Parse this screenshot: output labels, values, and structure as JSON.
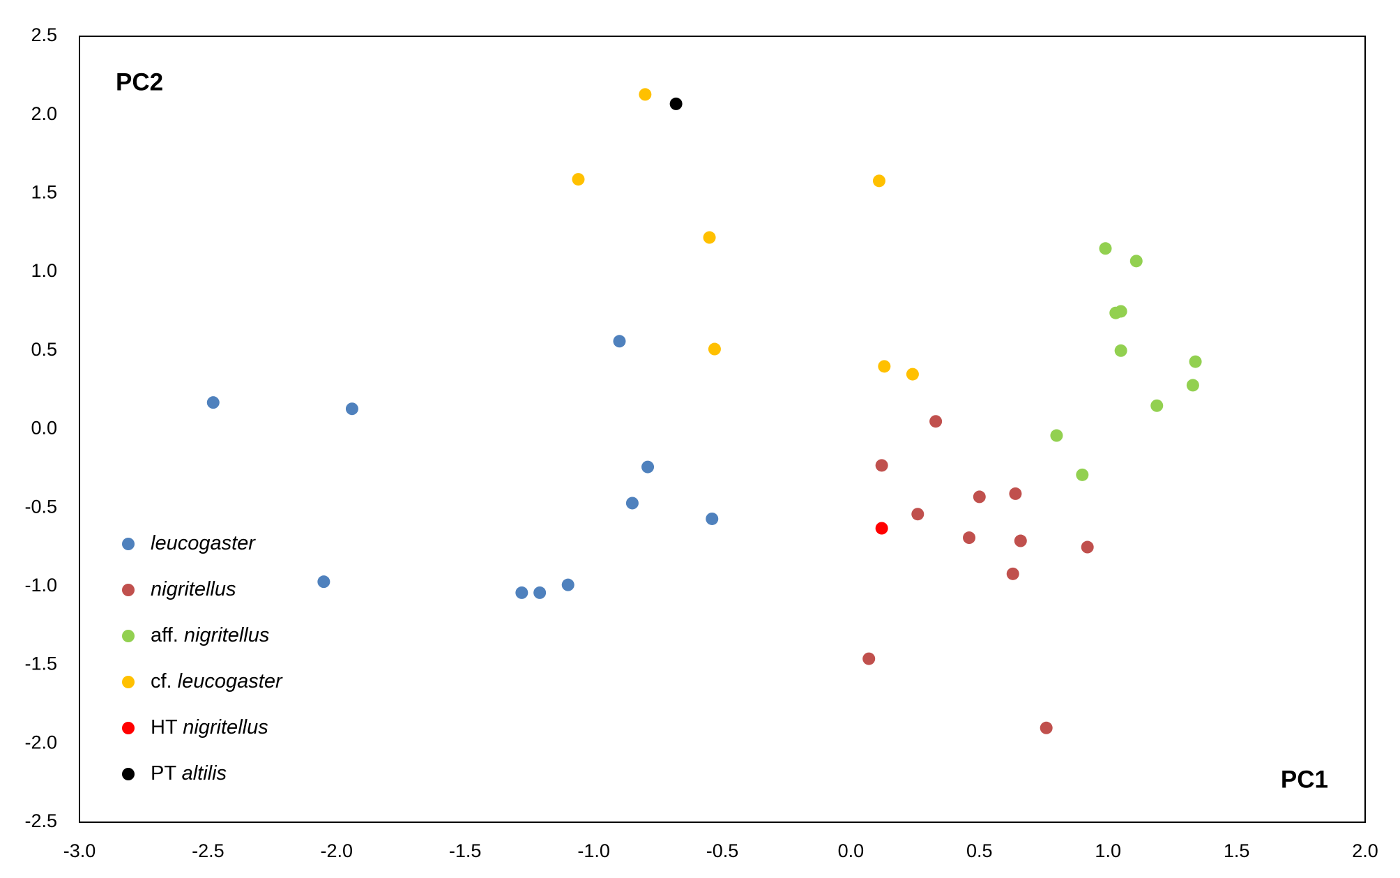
{
  "chart_data": {
    "type": "scatter",
    "x_label": "PC1",
    "y_label": "PC2",
    "xlim": [
      -3.0,
      2.0
    ],
    "ylim": [
      -2.5,
      2.5
    ],
    "xticks": [
      {
        "value": -3,
        "label": "-3.0"
      },
      -2.5,
      {
        "value": -2,
        "label": "-2.0"
      },
      -1.5,
      {
        "value": -1,
        "label": "-1.0"
      },
      -0.5,
      {
        "value": 0,
        "label": "0.0"
      },
      0.5,
      {
        "value": 1,
        "label": "1.0"
      },
      1.5,
      {
        "value": 2,
        "label": "2.0"
      }
    ],
    "yticks": [
      2.5,
      {
        "value": 2,
        "label": "2.0"
      },
      1.5,
      {
        "value": 1,
        "label": "1.0"
      },
      0.5,
      {
        "value": 0,
        "label": "0.0"
      },
      -0.5,
      {
        "value": -1,
        "label": "-1.0"
      },
      -1.5,
      {
        "value": -2,
        "label": "-2.0"
      },
      -2.5
    ],
    "grid": false,
    "legend": "lower left",
    "series": [
      {
        "name": "leucogaster",
        "color": "#4f81bd",
        "x": [
          -2.48,
          -1.94,
          -0.9,
          -0.79,
          -0.85,
          -0.54,
          -2.05,
          -1.28,
          -1.21,
          -1.1
        ],
        "values": [
          0.17,
          0.13,
          0.56,
          -0.24,
          -0.47,
          -0.57,
          -0.97,
          -1.04,
          -1.04,
          -0.99
        ]
      },
      {
        "name": "nigritellus",
        "color": "#c0504d",
        "x": [
          0.33,
          0.12,
          0.5,
          0.64,
          0.26,
          0.46,
          0.66,
          0.92,
          0.63,
          0.07,
          0.76
        ],
        "values": [
          0.05,
          -0.23,
          -0.43,
          -0.41,
          -0.54,
          -0.69,
          -0.71,
          -0.75,
          -0.92,
          -1.46,
          -1.9
        ]
      },
      {
        "name": "aff. nigritellus",
        "color": "#92d050",
        "x": [
          0.99,
          1.11,
          1.03,
          1.05,
          1.05,
          1.34,
          1.33,
          1.19,
          0.8,
          0.9
        ],
        "values": [
          1.15,
          1.07,
          0.74,
          0.75,
          0.5,
          0.43,
          0.28,
          0.15,
          -0.04,
          -0.29
        ]
      },
      {
        "name": "cf. leucogaster",
        "color": "#ffc000",
        "x": [
          -0.8,
          -1.06,
          0.11,
          -0.55,
          -0.53,
          0.13,
          0.24
        ],
        "values": [
          2.13,
          1.59,
          1.58,
          1.22,
          0.51,
          0.4,
          0.35
        ]
      },
      {
        "name": "HT nigritellus",
        "color": "#ff0000",
        "x": [
          0.12
        ],
        "values": [
          -0.63
        ]
      },
      {
        "name": "PT altilis",
        "color": "#000000",
        "x": [
          -0.68
        ],
        "values": [
          2.07
        ]
      }
    ]
  }
}
